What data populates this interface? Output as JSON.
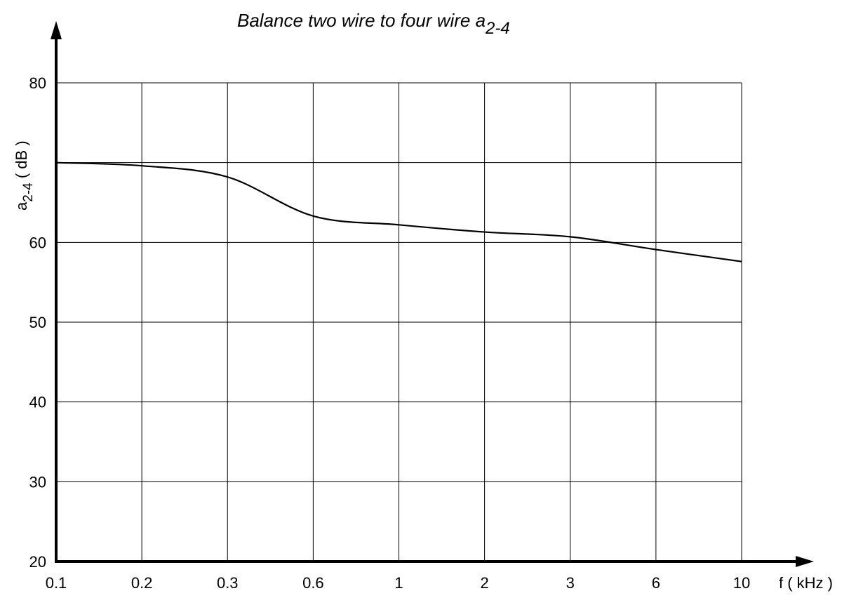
{
  "chart_data": {
    "type": "line",
    "title": {
      "main": "Balance two wire to four wire a",
      "subscript": "2-4"
    },
    "xlabel": "f ( kHz )",
    "ylabel": {
      "symbol": "a",
      "subscript": "2-4",
      "unit": " ( dB )"
    },
    "x_ticks": [
      "0.1",
      "0.2",
      "0.3",
      "0.6",
      "1",
      "2",
      "3",
      "6",
      "10"
    ],
    "y_ticks": [
      "20",
      "30",
      "40",
      "50",
      "60",
      "80"
    ],
    "ylim": [
      20,
      80
    ],
    "y_gridlines": [
      20,
      30,
      40,
      50,
      60,
      70,
      80
    ],
    "grid": true,
    "series": [
      {
        "x": [
          "0.1",
          "0.2",
          "0.3",
          "0.6",
          "1",
          "2",
          "3",
          "6",
          "10"
        ],
        "values": [
          70,
          69.6,
          68.2,
          63.3,
          62.2,
          61.3,
          60.7,
          59.1,
          57.6
        ]
      }
    ],
    "colors": {
      "line": "#000000",
      "grid": "#000000",
      "background": "#ffffff"
    }
  }
}
